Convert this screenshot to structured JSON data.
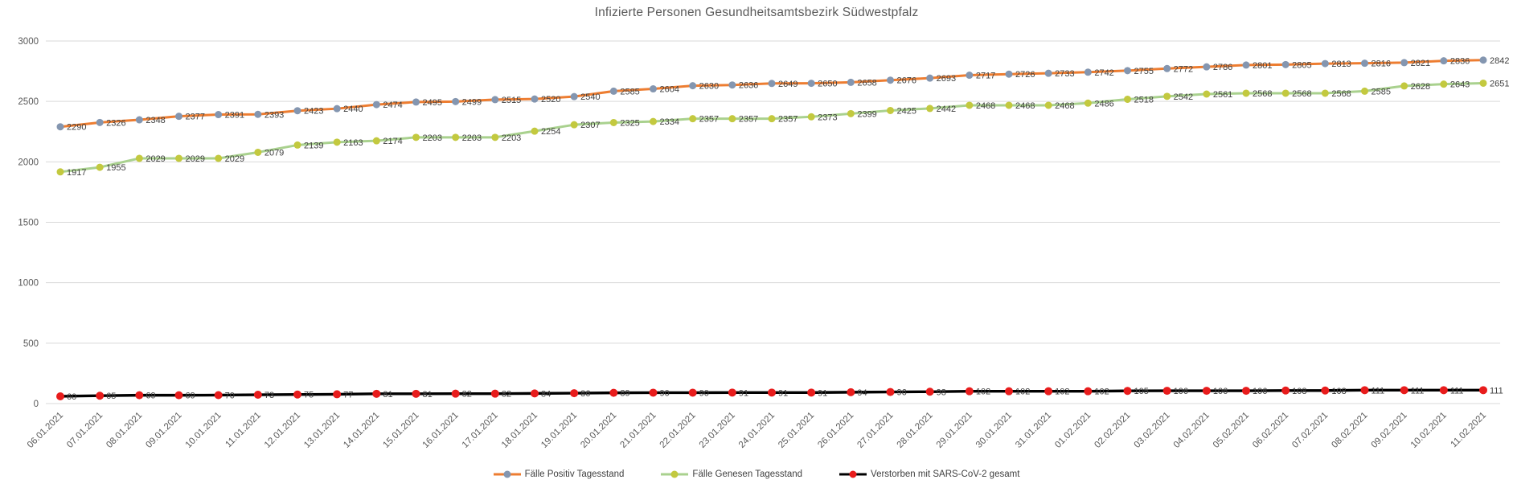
{
  "chart_data": {
    "type": "line",
    "title": "Infizierte Personen Gesundheitsamtsbezirk Südwestpfalz",
    "xlabel": "",
    "ylabel": "",
    "ylim": [
      0,
      3000
    ],
    "y_ticks": [
      0,
      500,
      1000,
      1500,
      2000,
      2500,
      3000
    ],
    "grid": "horizontal",
    "legend_position": "bottom",
    "gridline_color": "#d9d9d9",
    "axis_text_color": "#595959",
    "label_text_color": "#3f3f3f",
    "categories": [
      "06.01.2021",
      "07.01.2021",
      "08.01.2021",
      "09.01.2021",
      "10.01.2021",
      "11.01.2021",
      "12.01.2021",
      "13.01.2021",
      "14.01.2021",
      "15.01.2021",
      "16.01.2021",
      "17.01.2021",
      "18.01.2021",
      "19.01.2021",
      "20.01.2021",
      "21.01.2021",
      "22.01.2021",
      "23.01.2021",
      "24.01.2021",
      "25.01.2021",
      "26.01.2021",
      "27.01.2021",
      "28.01.2021",
      "29.01.2021",
      "30.01.2021",
      "31.01.2021",
      "01.02.2021",
      "02.02.2021",
      "03.02.2021",
      "04.02.2021",
      "05.02.2021",
      "06.02.2021",
      "07.02.2021",
      "08.02.2021",
      "09.02.2021",
      "10.02.2021",
      "11.02.2021"
    ],
    "series": [
      {
        "name": "Fälle Positiv Tagesstand",
        "line_color": "#ED7D31",
        "marker_color": "#8496B0",
        "values": [
          2290,
          2326,
          2348,
          2377,
          2391,
          2393,
          2423,
          2440,
          2474,
          2495,
          2499,
          2515,
          2520,
          2540,
          2585,
          2604,
          2630,
          2636,
          2649,
          2650,
          2658,
          2676,
          2693,
          2717,
          2726,
          2733,
          2742,
          2755,
          2772,
          2786,
          2801,
          2805,
          2813,
          2816,
          2821,
          2836,
          2842
        ]
      },
      {
        "name": "Fälle Genesen Tagesstand",
        "line_color": "#A9D18E",
        "marker_color": "#C3C93F",
        "values": [
          1917,
          1955,
          2029,
          2029,
          2029,
          2079,
          2139,
          2163,
          2174,
          2203,
          2203,
          2203,
          2254,
          2307,
          2325,
          2334,
          2357,
          2357,
          2357,
          2373,
          2399,
          2425,
          2442,
          2468,
          2468,
          2468,
          2486,
          2518,
          2542,
          2561,
          2568,
          2568,
          2568,
          2585,
          2628,
          2643,
          2651
        ]
      },
      {
        "name": "Verstorben mit SARS-CoV-2 gesamt",
        "line_color": "#000000",
        "marker_color": "#E81C1C",
        "values": [
          60,
          65,
          69,
          69,
          70,
          73,
          75,
          77,
          81,
          81,
          82,
          82,
          84,
          86,
          89,
          90,
          90,
          91,
          91,
          91,
          94,
          96,
          98,
          102,
          102,
          102,
          102,
          105,
          106,
          106,
          106,
          108,
          108,
          111,
          111,
          111,
          111
        ]
      }
    ]
  }
}
